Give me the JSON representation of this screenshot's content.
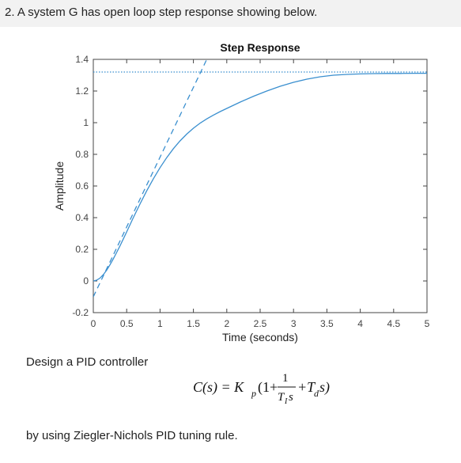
{
  "question": {
    "text": "2.  A system G has open loop step response showing below."
  },
  "chart_data": {
    "type": "line",
    "title": "Step Response",
    "xlabel": "Time (seconds)",
    "ylabel": "Amplitude",
    "xlim": [
      0,
      5
    ],
    "ylim": [
      -0.2,
      1.4
    ],
    "xticks": [
      0,
      0.5,
      1,
      1.5,
      2,
      2.5,
      3,
      3.5,
      4,
      4.5,
      5
    ],
    "xtick_labels": [
      "0",
      "0.5",
      "1",
      "1.5",
      "2",
      "2.5",
      "3",
      "3.5",
      "4",
      "4.5",
      "5"
    ],
    "yticks": [
      -0.2,
      0,
      0.2,
      0.4,
      0.6,
      0.8,
      1,
      1.2,
      1.4
    ],
    "ytick_labels": [
      "-0.2",
      "0",
      "0.2",
      "0.4",
      "0.6",
      "0.8",
      "1",
      "1.2",
      "1.4"
    ],
    "grid": false,
    "series": [
      {
        "x": [
          0,
          0.05,
          0.1,
          0.15,
          0.2,
          0.25,
          0.3,
          0.35,
          0.4,
          0.45,
          0.5,
          0.6,
          0.7,
          0.8,
          0.9,
          1.0,
          1.1,
          1.2,
          1.3,
          1.4,
          1.5,
          1.6,
          1.7,
          1.8,
          1.9,
          2.0,
          2.2,
          2.4,
          2.6,
          2.8,
          3.0,
          3.2,
          3.4,
          3.6,
          3.8,
          4.0,
          4.2,
          4.4,
          4.6,
          4.8,
          5.0
        ],
        "values": [
          0,
          0.005,
          0.018,
          0.04,
          0.068,
          0.102,
          0.14,
          0.18,
          0.222,
          0.266,
          0.31,
          0.4,
          0.487,
          0.569,
          0.646,
          0.716,
          0.779,
          0.836,
          0.885,
          0.928,
          0.965,
          0.997,
          1.024,
          1.048,
          1.07,
          1.09,
          1.13,
          1.167,
          1.2,
          1.23,
          1.255,
          1.275,
          1.29,
          1.3,
          1.305,
          1.308,
          1.31,
          1.311,
          1.311,
          1.312,
          1.312
        ],
        "style": "solid",
        "color": "#3a8fcf"
      },
      {
        "x": [
          0,
          1.7
        ],
        "values": [
          -0.1,
          1.4
        ],
        "style": "dashed",
        "color": "#3a8fcf"
      },
      {
        "x": [
          0,
          5
        ],
        "values": [
          1.32,
          1.32
        ],
        "style": "dotted",
        "color": "#3a8fcf"
      }
    ]
  },
  "design": {
    "text": "Design a PID controller"
  },
  "formula": {
    "lhs": "C(s) = K",
    "kp_sub": "p",
    "open": "(1+",
    "numerator": "1",
    "denominator": "T",
    "den_sub": "I",
    "den_s": "s",
    "plus": "+T",
    "td_sub": "d",
    "tail": "s)"
  },
  "rule": {
    "text": "by using Ziegler-Nichols PID tuning rule."
  }
}
